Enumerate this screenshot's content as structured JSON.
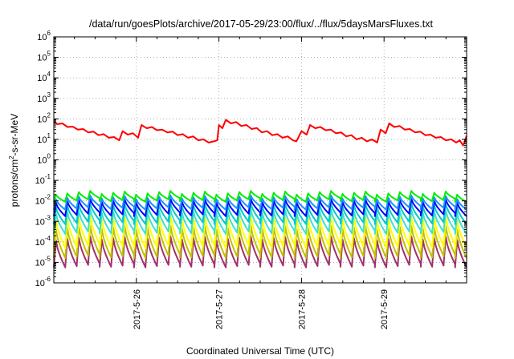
{
  "chart_data": {
    "type": "line",
    "title": "/data/run/goesPlots/archive/2017-05-29/23:00/flux/../flux/5daysMarsFluxes.txt",
    "xlabel": "Coordinated Universal Time (UTC)",
    "ylabel": {
      "base": "protons/cm",
      "sup": "2",
      "rest": "-s-sr-MeV"
    },
    "xlim": [
      "2017-05-25T00:00",
      "2017-05-30T00:00"
    ],
    "x_ticks": [
      "2017-5-26",
      "2017-5-27",
      "2017-5-28",
      "2017-5-29"
    ],
    "y_scale": "log",
    "ylim": [
      1e-06,
      1000000.0
    ],
    "y_ticks": [
      {
        "base": "10",
        "exp": "-6"
      },
      {
        "base": "10",
        "exp": "-5"
      },
      {
        "base": "10",
        "exp": "-4"
      },
      {
        "base": "10",
        "exp": "-3"
      },
      {
        "base": "10",
        "exp": "-2"
      },
      {
        "base": "10",
        "exp": "-1"
      },
      {
        "base": "10",
        "exp": "0"
      },
      {
        "base": "10",
        "exp": "1"
      },
      {
        "base": "10",
        "exp": "2"
      },
      {
        "base": "10",
        "exp": "3"
      },
      {
        "base": "10",
        "exp": "4"
      },
      {
        "base": "10",
        "exp": "5"
      },
      {
        "base": "10",
        "exp": "6"
      }
    ],
    "grid": true,
    "series": [
      {
        "color": "#ff0000",
        "points": [
          [
            "2017-05-25T00:00",
            80
          ],
          [
            "2017-05-25T01:00",
            55
          ],
          [
            "2017-05-25T02:30",
            60
          ],
          [
            "2017-05-25T04:00",
            40
          ],
          [
            "2017-05-25T05:30",
            42
          ],
          [
            "2017-05-25T07:00",
            30
          ],
          [
            "2017-05-25T08:30",
            32
          ],
          [
            "2017-05-25T10:00",
            22
          ],
          [
            "2017-05-25T11:30",
            24
          ],
          [
            "2017-05-25T13:00",
            16
          ],
          [
            "2017-05-25T14:30",
            18
          ],
          [
            "2017-05-25T16:00",
            12
          ],
          [
            "2017-05-25T17:30",
            13
          ],
          [
            "2017-05-25T19:00",
            9
          ],
          [
            "2017-05-25T20:00",
            25
          ],
          [
            "2017-05-25T21:30",
            17
          ],
          [
            "2017-05-25T23:00",
            20
          ],
          [
            "2017-05-26T00:30",
            12
          ],
          [
            "2017-05-26T01:30",
            50
          ],
          [
            "2017-05-26T03:00",
            35
          ],
          [
            "2017-05-26T04:30",
            40
          ],
          [
            "2017-05-26T06:00",
            28
          ],
          [
            "2017-05-26T07:30",
            30
          ],
          [
            "2017-05-26T09:00",
            22
          ],
          [
            "2017-05-26T10:30",
            24
          ],
          [
            "2017-05-26T12:00",
            16
          ],
          [
            "2017-05-26T13:30",
            18
          ],
          [
            "2017-05-26T15:00",
            12
          ],
          [
            "2017-05-26T16:30",
            14
          ],
          [
            "2017-05-26T18:00",
            9
          ],
          [
            "2017-05-26T19:30",
            10
          ],
          [
            "2017-05-26T21:00",
            7
          ],
          [
            "2017-05-26T22:30",
            8
          ],
          [
            "2017-05-26T23:30",
            9
          ],
          [
            "2017-05-27T00:00",
            50
          ],
          [
            "2017-05-27T01:00",
            35
          ],
          [
            "2017-05-27T02:00",
            90
          ],
          [
            "2017-05-27T03:30",
            60
          ],
          [
            "2017-05-27T05:00",
            70
          ],
          [
            "2017-05-27T06:30",
            45
          ],
          [
            "2017-05-27T08:00",
            50
          ],
          [
            "2017-05-27T09:30",
            32
          ],
          [
            "2017-05-27T11:00",
            36
          ],
          [
            "2017-05-27T12:30",
            22
          ],
          [
            "2017-05-27T14:00",
            25
          ],
          [
            "2017-05-27T15:30",
            16
          ],
          [
            "2017-05-27T17:00",
            18
          ],
          [
            "2017-05-27T18:30",
            12
          ],
          [
            "2017-05-27T20:00",
            14
          ],
          [
            "2017-05-27T21:30",
            9
          ],
          [
            "2017-05-27T22:30",
            8
          ],
          [
            "2017-05-28T00:00",
            25
          ],
          [
            "2017-05-28T01:30",
            17
          ],
          [
            "2017-05-28T02:30",
            50
          ],
          [
            "2017-05-28T04:00",
            35
          ],
          [
            "2017-05-28T05:30",
            40
          ],
          [
            "2017-05-28T07:00",
            28
          ],
          [
            "2017-05-28T08:30",
            30
          ],
          [
            "2017-05-28T10:00",
            20
          ],
          [
            "2017-05-28T11:30",
            22
          ],
          [
            "2017-05-28T13:00",
            14
          ],
          [
            "2017-05-28T14:30",
            16
          ],
          [
            "2017-05-28T16:00",
            10
          ],
          [
            "2017-05-28T17:30",
            12
          ],
          [
            "2017-05-28T19:00",
            8
          ],
          [
            "2017-05-28T20:30",
            10
          ],
          [
            "2017-05-28T22:00",
            7
          ],
          [
            "2017-05-28T23:00",
            30
          ],
          [
            "2017-05-29T00:30",
            20
          ],
          [
            "2017-05-29T01:30",
            60
          ],
          [
            "2017-05-29T03:00",
            40
          ],
          [
            "2017-05-29T04:30",
            45
          ],
          [
            "2017-05-29T06:00",
            30
          ],
          [
            "2017-05-29T07:30",
            32
          ],
          [
            "2017-05-29T09:00",
            22
          ],
          [
            "2017-05-29T10:30",
            24
          ],
          [
            "2017-05-29T12:00",
            16
          ],
          [
            "2017-05-29T13:30",
            17
          ],
          [
            "2017-05-29T15:00",
            12
          ],
          [
            "2017-05-29T16:30",
            13
          ],
          [
            "2017-05-29T18:00",
            9
          ],
          [
            "2017-05-29T19:30",
            10
          ],
          [
            "2017-05-29T21:00",
            7
          ],
          [
            "2017-05-29T22:00",
            9
          ],
          [
            "2017-05-29T23:00",
            5
          ],
          [
            "2017-05-30T00:00",
            15
          ]
        ]
      },
      {
        "color": "#00ee00",
        "sawtooth": {
          "cycles": 36,
          "peak": 0.025,
          "trough": 0.011
        }
      },
      {
        "color": "#1e90ff",
        "sawtooth": {
          "cycles": 36,
          "peak": 0.015,
          "trough": 0.0045
        }
      },
      {
        "color": "#0000ff",
        "sawtooth": {
          "cycles": 36,
          "peak": 0.01,
          "trough": 0.0022
        }
      },
      {
        "color": "#00c8c8",
        "sawtooth": {
          "cycles": 36,
          "peak": 0.006,
          "trough": 0.0009
        }
      },
      {
        "color": "#40e0d0",
        "sawtooth": {
          "cycles": 36,
          "peak": 0.003,
          "trough": 0.0003
        }
      },
      {
        "color": "#ffff00",
        "sawtooth": {
          "cycles": 36,
          "peak": 0.0015,
          "trough": 6e-05
        }
      },
      {
        "color": "#c0c000",
        "sawtooth": {
          "cycles": 36,
          "peak": 0.0005,
          "trough": 2e-05
        }
      },
      {
        "color": "#a0306a",
        "sawtooth": {
          "cycles": 36,
          "peak": 0.00015,
          "trough": 7e-06
        }
      }
    ]
  }
}
